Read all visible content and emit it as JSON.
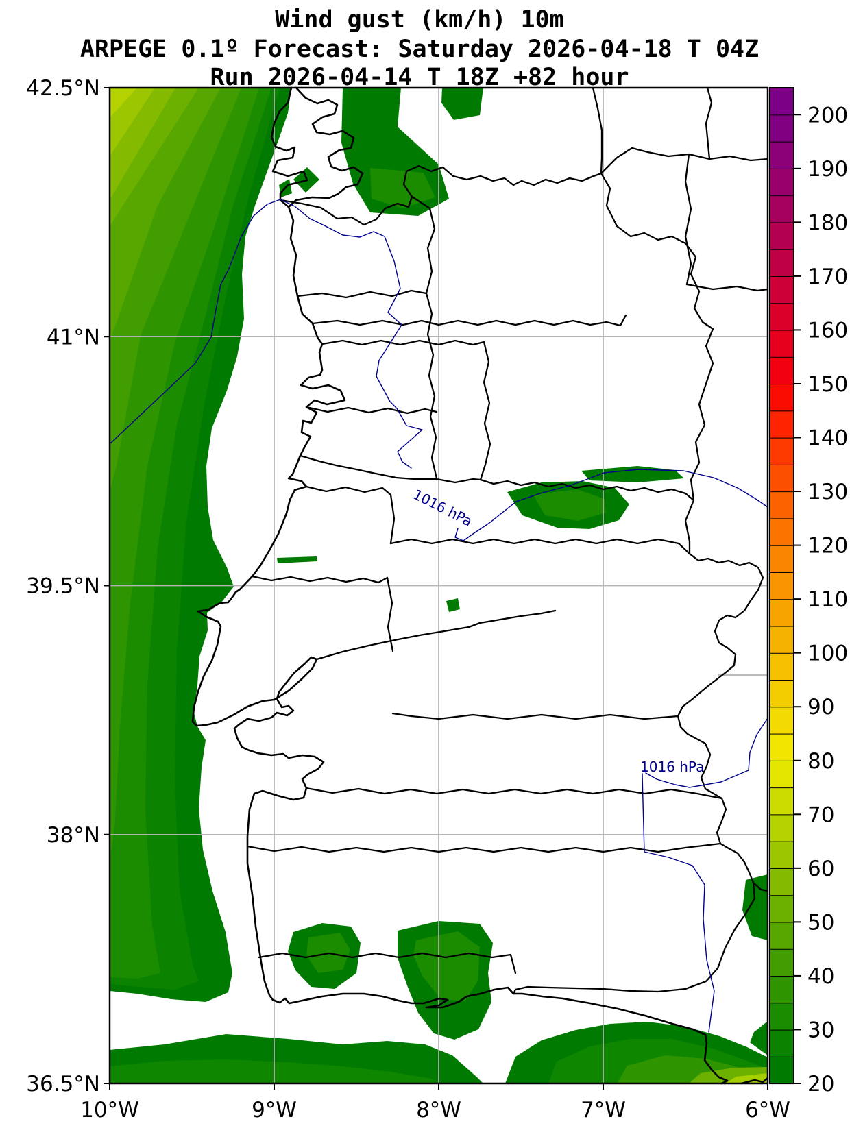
{
  "titles": {
    "line1": "Wind gust (km/h) 10m",
    "line2": "ARPEGE 0.1º Forecast: Saturday 2026-04-18 T 04Z",
    "line3": "Run 2026-04-14 T 18Z +82 hour"
  },
  "axes": {
    "lat_ticks": [
      "42.5°N",
      "41°N",
      "39.5°N",
      "38°N",
      "36.5°N"
    ],
    "lon_ticks": [
      "10°W",
      "9°W",
      "8°W",
      "7°W",
      "6°W"
    ]
  },
  "isobar_labels": [
    "1016 hPa",
    "1016 hPa"
  ],
  "chart_data": {
    "type": "heatmap",
    "title": "Wind gust (km/h) 10m",
    "model": "ARPEGE 0.1º",
    "forecast_valid": "Saturday 2026-04-18 T 04Z",
    "run": "2026-04-14 T 18Z",
    "lead_time_hours": 82,
    "variable": "Wind gust at 10 m",
    "unit": "km/h",
    "region": "Portugal",
    "lon_labels": [
      "10°W",
      "9°W",
      "8°W",
      "7°W",
      "6°W"
    ],
    "lat_labels": [
      "42.5°N",
      "41°N",
      "39.5°N",
      "38°N",
      "36.5°N"
    ],
    "grid": true,
    "isobars": [
      {
        "value_hpa": 1016,
        "label": "1016 hPa",
        "placement": "center, rotated along line"
      },
      {
        "value_hpa": 1016,
        "label": "1016 hPa",
        "placement": "southeast, horizontal"
      }
    ],
    "field_summary": {
      "ocean_nw_corner_max_band_kmh": "65-70",
      "coastal_ocean_band_kmh": "20-25",
      "land_patches_band_kmh": "20-30",
      "gradient": "gust decreases from NW ocean corner toward the coast; scattered 20-30 patches on land and along the south coast"
    },
    "colorbar": {
      "unit": "km/h",
      "min": 20,
      "max": 205,
      "tick_step": 10,
      "tick_values": [
        20,
        30,
        40,
        50,
        60,
        70,
        80,
        90,
        100,
        110,
        120,
        130,
        140,
        150,
        160,
        170,
        180,
        190,
        200
      ],
      "segment_step": 5,
      "segments": [
        {
          "from": 20,
          "to": 25,
          "color": "#007a00"
        },
        {
          "from": 25,
          "to": 30,
          "color": "#0b8200"
        },
        {
          "from": 30,
          "to": 35,
          "color": "#1b8b00"
        },
        {
          "from": 35,
          "to": 40,
          "color": "#2e9400"
        },
        {
          "from": 40,
          "to": 45,
          "color": "#429d00"
        },
        {
          "from": 45,
          "to": 50,
          "color": "#57a700"
        },
        {
          "from": 50,
          "to": 55,
          "color": "#6db100"
        },
        {
          "from": 55,
          "to": 60,
          "color": "#84bb00"
        },
        {
          "from": 60,
          "to": 65,
          "color": "#9cc600"
        },
        {
          "from": 65,
          "to": 70,
          "color": "#b4d100"
        },
        {
          "from": 70,
          "to": 75,
          "color": "#ccdb00"
        },
        {
          "from": 75,
          "to": 80,
          "color": "#e4e600"
        },
        {
          "from": 80,
          "to": 85,
          "color": "#f2e600"
        },
        {
          "from": 85,
          "to": 90,
          "color": "#f3da00"
        },
        {
          "from": 90,
          "to": 95,
          "color": "#f4cd00"
        },
        {
          "from": 95,
          "to": 100,
          "color": "#f5c000"
        },
        {
          "from": 100,
          "to": 105,
          "color": "#f6b200"
        },
        {
          "from": 105,
          "to": 110,
          "color": "#f8a400"
        },
        {
          "from": 110,
          "to": 115,
          "color": "#f99500"
        },
        {
          "from": 115,
          "to": 120,
          "color": "#fa8500"
        },
        {
          "from": 120,
          "to": 125,
          "color": "#fb7400"
        },
        {
          "from": 125,
          "to": 130,
          "color": "#fc6200"
        },
        {
          "from": 130,
          "to": 135,
          "color": "#fd4f00"
        },
        {
          "from": 135,
          "to": 140,
          "color": "#fe3a00"
        },
        {
          "from": 140,
          "to": 145,
          "color": "#fe2300"
        },
        {
          "from": 145,
          "to": 150,
          "color": "#fb0c03"
        },
        {
          "from": 150,
          "to": 155,
          "color": "#f20010"
        },
        {
          "from": 155,
          "to": 160,
          "color": "#e6001d"
        },
        {
          "from": 160,
          "to": 165,
          "color": "#da002a"
        },
        {
          "from": 165,
          "to": 170,
          "color": "#cd0037"
        },
        {
          "from": 170,
          "to": 175,
          "color": "#c00044"
        },
        {
          "from": 175,
          "to": 180,
          "color": "#b30051"
        },
        {
          "from": 180,
          "to": 185,
          "color": "#a6005e"
        },
        {
          "from": 185,
          "to": 190,
          "color": "#99006b"
        },
        {
          "from": 190,
          "to": 195,
          "color": "#8c0078"
        },
        {
          "from": 195,
          "to": 200,
          "color": "#810081"
        },
        {
          "from": 200,
          "to": 205,
          "color": "#7b0085"
        }
      ]
    }
  }
}
